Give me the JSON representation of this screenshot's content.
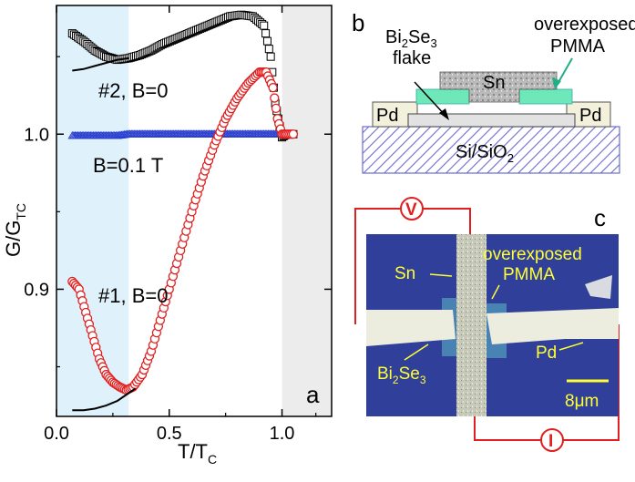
{
  "chart_data": {
    "type": "scatter",
    "panel_label": "a",
    "xlabel": "T/T",
    "xlabel_sub": "C",
    "ylabel": "G/G",
    "ylabel_sub": "TC",
    "xlim": [
      0.0,
      1.22
    ],
    "ylim": [
      0.818,
      1.083
    ],
    "xticks": [
      0.0,
      0.5,
      1.0
    ],
    "xtick_labels": [
      "0.0",
      "0.5",
      "1.0"
    ],
    "yticks": [
      0.9,
      1.0
    ],
    "ytick_labels": [
      "0.9",
      "1.0"
    ],
    "shaded_regions": [
      {
        "name": "low-temperature region",
        "x": [
          0.0,
          0.32
        ],
        "color": "#dff1fb"
      },
      {
        "name": "normal-state region",
        "x": [
          1.0,
          1.22
        ],
        "color": "#ececec"
      }
    ],
    "series": [
      {
        "name": "#2, B=0",
        "marker": "square",
        "color": "#000000",
        "x": [
          0.07,
          0.12,
          0.17,
          0.22,
          0.27,
          0.32,
          0.37,
          0.42,
          0.47,
          0.52,
          0.57,
          0.62,
          0.67,
          0.72,
          0.77,
          0.82,
          0.87,
          0.92,
          0.95,
          0.97,
          0.99,
          1.0,
          1.02,
          1.05
        ],
        "values": [
          1.065,
          1.06,
          1.054,
          1.05,
          1.048,
          1.049,
          1.051,
          1.054,
          1.058,
          1.061,
          1.064,
          1.067,
          1.07,
          1.073,
          1.076,
          1.077,
          1.076,
          1.07,
          1.05,
          1.02,
          1.005,
          0.998,
          1.0,
          1.0
        ]
      },
      {
        "name": "B=0.1 T",
        "marker": "triangle",
        "color": "#2a3fd0",
        "x": [
          0.07,
          0.12,
          0.17,
          0.22,
          0.27,
          0.32,
          0.37,
          0.42,
          0.47,
          0.52,
          0.57,
          0.62,
          0.67,
          0.72,
          0.77,
          0.82,
          0.87,
          0.92,
          0.97,
          1.02,
          1.05
        ],
        "values": [
          0.999,
          0.999,
          0.999,
          0.999,
          0.999,
          1.0,
          1.0,
          1.0,
          1.0,
          1.0,
          1.0,
          1.0,
          1.0,
          1.0,
          1.0,
          1.0,
          1.0,
          1.0,
          1.0,
          1.0,
          1.0
        ]
      },
      {
        "name": "#1, B=0",
        "marker": "circle",
        "color": "#e02020",
        "x": [
          0.07,
          0.1,
          0.13,
          0.16,
          0.19,
          0.22,
          0.25,
          0.28,
          0.31,
          0.34,
          0.38,
          0.42,
          0.46,
          0.5,
          0.55,
          0.6,
          0.65,
          0.7,
          0.75,
          0.8,
          0.85,
          0.9,
          0.93,
          0.96,
          0.98,
          1.0,
          1.02,
          1.05
        ],
        "values": [
          0.905,
          0.9,
          0.885,
          0.87,
          0.855,
          0.845,
          0.84,
          0.837,
          0.835,
          0.837,
          0.845,
          0.86,
          0.88,
          0.9,
          0.925,
          0.95,
          0.973,
          0.993,
          1.01,
          1.023,
          1.033,
          1.04,
          1.04,
          1.03,
          1.01,
          1.0,
          1.0,
          1.0
        ]
      }
    ],
    "fit_curves": [
      {
        "name": "fit #2",
        "color": "#000000",
        "x": [
          0.07,
          0.12,
          0.17,
          0.22,
          0.27,
          0.32
        ],
        "values": [
          1.041,
          1.042,
          1.044,
          1.046,
          1.048,
          1.049
        ]
      },
      {
        "name": "fit #1",
        "color": "#000000",
        "x": [
          0.07,
          0.12,
          0.17,
          0.22,
          0.27,
          0.32,
          0.35
        ],
        "values": [
          0.822,
          0.822,
          0.823,
          0.825,
          0.828,
          0.833,
          0.836
        ]
      }
    ],
    "annotations": {
      "s2": "#2, B=0",
      "b01": "B=0.1 T",
      "s1": "#1, B=0"
    }
  },
  "schematic_b": {
    "panel_label": "b",
    "labels": {
      "flake_1": "Bi",
      "flake_1_sub": "2",
      "flake_2": "Se",
      "flake_2_sub": "3",
      "flake_line2": "flake",
      "pmma_line1": "overexposed",
      "pmma_line2": "PMMA",
      "sn": "Sn",
      "pd_left": "Pd",
      "pd_right": "Pd",
      "substrate": "Si/SiO",
      "substrate_sub": "2"
    },
    "colors": {
      "pmma": "#6ee8b8",
      "arrow_green": "#1fae86",
      "pd": "#f3f1dc",
      "substrate_hatch": "#6b6bd0"
    }
  },
  "photo_c": {
    "panel_label": "c",
    "labels": {
      "voltmeter": "V",
      "ammeter": "I",
      "sn": "Sn",
      "pmma_line1": "overexposed",
      "pmma_line2": "PMMA",
      "pd": "Pd",
      "bise_1": "Bi",
      "bise_sub1": "2",
      "bise_2": "Se",
      "bise_sub2": "3",
      "scale": "8μm"
    },
    "colors": {
      "background": "#2f3f9a",
      "wire": "#e02020",
      "label": "#ffff33"
    }
  }
}
